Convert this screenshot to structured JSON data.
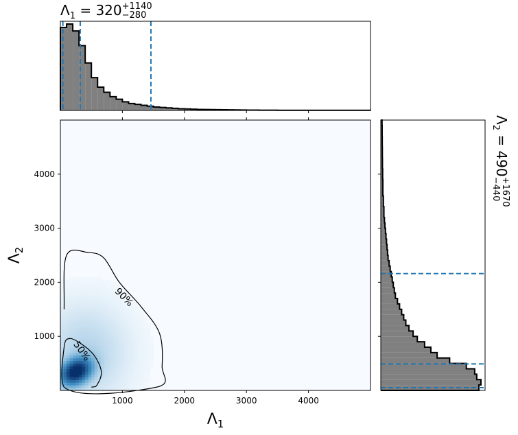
{
  "colors": {
    "hist_fill": "#808080",
    "hist_edge": "#000000",
    "quantile_line": "#1f77b4",
    "density_low": "#f7fbff",
    "density_high": "#08306b",
    "contour": "#000000"
  },
  "chart_data": [
    {
      "type": "histogram",
      "panel": "top-marginal",
      "variable": "Λ1",
      "title": {
        "prefix": "Λ",
        "prefix_sub": "1",
        "equals": " = ",
        "median": "320",
        "upper": "+1140",
        "lower": "−280"
      },
      "xlim": [
        0,
        5000
      ],
      "bin_width": 100,
      "bin_edges_start": 0,
      "values": [
        0.96,
        1.0,
        0.92,
        0.75,
        0.55,
        0.38,
        0.27,
        0.21,
        0.16,
        0.13,
        0.1,
        0.08,
        0.07,
        0.06,
        0.05,
        0.04,
        0.035,
        0.03,
        0.025,
        0.02,
        0.018,
        0.015,
        0.012,
        0.011,
        0.01,
        0.009,
        0.008,
        0.007,
        0.006,
        0.005,
        0.004,
        0.004,
        0.003,
        0.003,
        0.003,
        0.002,
        0.002,
        0.002,
        0.002,
        0.002,
        0.002,
        0.002,
        0.002,
        0.002,
        0.002,
        0.002,
        0.002,
        0.002,
        0.002,
        0.002
      ],
      "quantiles": [
        40,
        320,
        1460
      ],
      "grid": false
    },
    {
      "type": "heatmap",
      "panel": "joint",
      "xlabel": "Λ",
      "xlabel_sub": "1",
      "ylabel": "Λ",
      "ylabel_sub": "2",
      "xlim": [
        0,
        5000
      ],
      "ylim": [
        0,
        5000
      ],
      "xticks": [
        "1000",
        "2000",
        "3000",
        "4000"
      ],
      "xtick_values": [
        1000,
        2000,
        3000,
        4000
      ],
      "yticks": [
        "1000",
        "2000",
        "3000",
        "4000"
      ],
      "ytick_values": [
        1000,
        2000,
        3000,
        4000
      ],
      "density_peak": [
        250,
        350
      ],
      "contours": [
        {
          "label": "50%",
          "points": [
            [
              60,
              60
            ],
            [
              60,
              800
            ],
            [
              150,
              960
            ],
            [
              350,
              850
            ],
            [
              550,
              640
            ],
            [
              660,
              350
            ],
            [
              600,
              120
            ],
            [
              500,
              60
            ]
          ],
          "label_at": [
            350,
            730
          ],
          "label_rotation_deg": 55
        },
        {
          "label": "90%",
          "points": [
            [
              60,
              1500
            ],
            [
              100,
              2500
            ],
            [
              450,
              2550
            ],
            [
              700,
              2450
            ],
            [
              950,
              2000
            ],
            [
              1300,
              1550
            ],
            [
              1600,
              1050
            ],
            [
              1640,
              450
            ],
            [
              1550,
              60
            ],
            [
              60,
              60
            ]
          ],
          "label_at": [
            1030,
            1730
          ],
          "label_rotation_deg": 45
        }
      ],
      "grid": false
    },
    {
      "type": "histogram",
      "orientation": "horizontal",
      "panel": "right-marginal",
      "variable": "Λ2",
      "title": {
        "prefix": "Λ",
        "prefix_sub": "2",
        "equals": " = ",
        "median": "490",
        "upper": "+1670",
        "lower": "−440"
      },
      "ylim": [
        0,
        5000
      ],
      "bin_width": 100,
      "bin_edges_start": 0,
      "values": [
        0.94,
        0.96,
        0.92,
        0.9,
        0.82,
        0.66,
        0.54,
        0.48,
        0.42,
        0.35,
        0.31,
        0.27,
        0.24,
        0.22,
        0.2,
        0.18,
        0.16,
        0.14,
        0.13,
        0.12,
        0.11,
        0.1,
        0.09,
        0.08,
        0.07,
        0.065,
        0.06,
        0.055,
        0.05,
        0.045,
        0.04,
        0.035,
        0.03,
        0.03,
        0.025,
        0.025,
        0.02,
        0.02,
        0.02,
        0.018,
        0.018,
        0.016,
        0.016,
        0.015,
        0.015,
        0.014,
        0.014,
        0.013,
        0.013,
        0.012
      ],
      "quantiles": [
        50,
        490,
        2160
      ],
      "grid": false
    }
  ]
}
